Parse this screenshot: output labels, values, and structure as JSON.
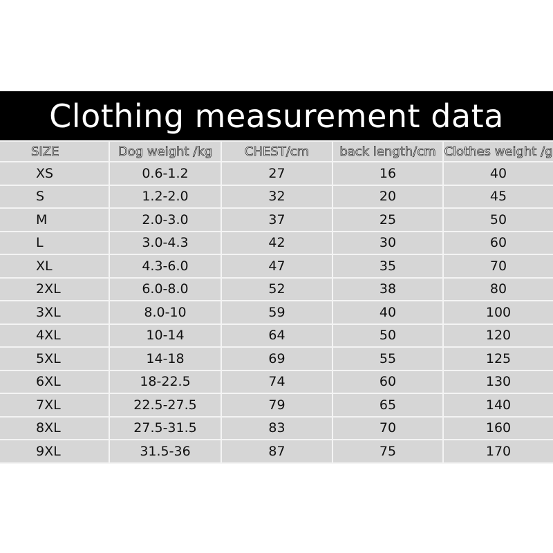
{
  "title": "Clothing measurement data",
  "columns": [
    "SIZE",
    "Dog weight /kg",
    "CHEST/cm",
    "back length/cm",
    "Clothes weight /g"
  ],
  "rows": [
    [
      "XS",
      "0.6-1.2",
      "27",
      "16",
      "40"
    ],
    [
      "S",
      "1.2-2.0",
      "32",
      "20",
      "45"
    ],
    [
      "M",
      "2.0-3.0",
      "37",
      "25",
      "50"
    ],
    [
      "L",
      "3.0-4.3",
      "42",
      "30",
      "60"
    ],
    [
      "XL",
      "4.3-6.0",
      "47",
      "35",
      "70"
    ],
    [
      "2XL",
      "6.0-8.0",
      "52",
      "38",
      "80"
    ],
    [
      "3XL",
      "8.0-10",
      "59",
      "40",
      "100"
    ],
    [
      "4XL",
      "10-14",
      "64",
      "50",
      "120"
    ],
    [
      "5XL",
      "14-18",
      "69",
      "55",
      "125"
    ],
    [
      "6XL",
      "18-22.5",
      "74",
      "60",
      "130"
    ],
    [
      "7XL",
      "22.5-27.5",
      "79",
      "65",
      "140"
    ],
    [
      "8XL",
      "27.5-31.5",
      "83",
      "70",
      "160"
    ],
    [
      "9XL",
      "31.5-36",
      "87",
      "75",
      "170"
    ]
  ],
  "colors": {
    "banner": "#000000",
    "table_bg": "#d6d6d6",
    "grid": "#f4f4f4"
  }
}
